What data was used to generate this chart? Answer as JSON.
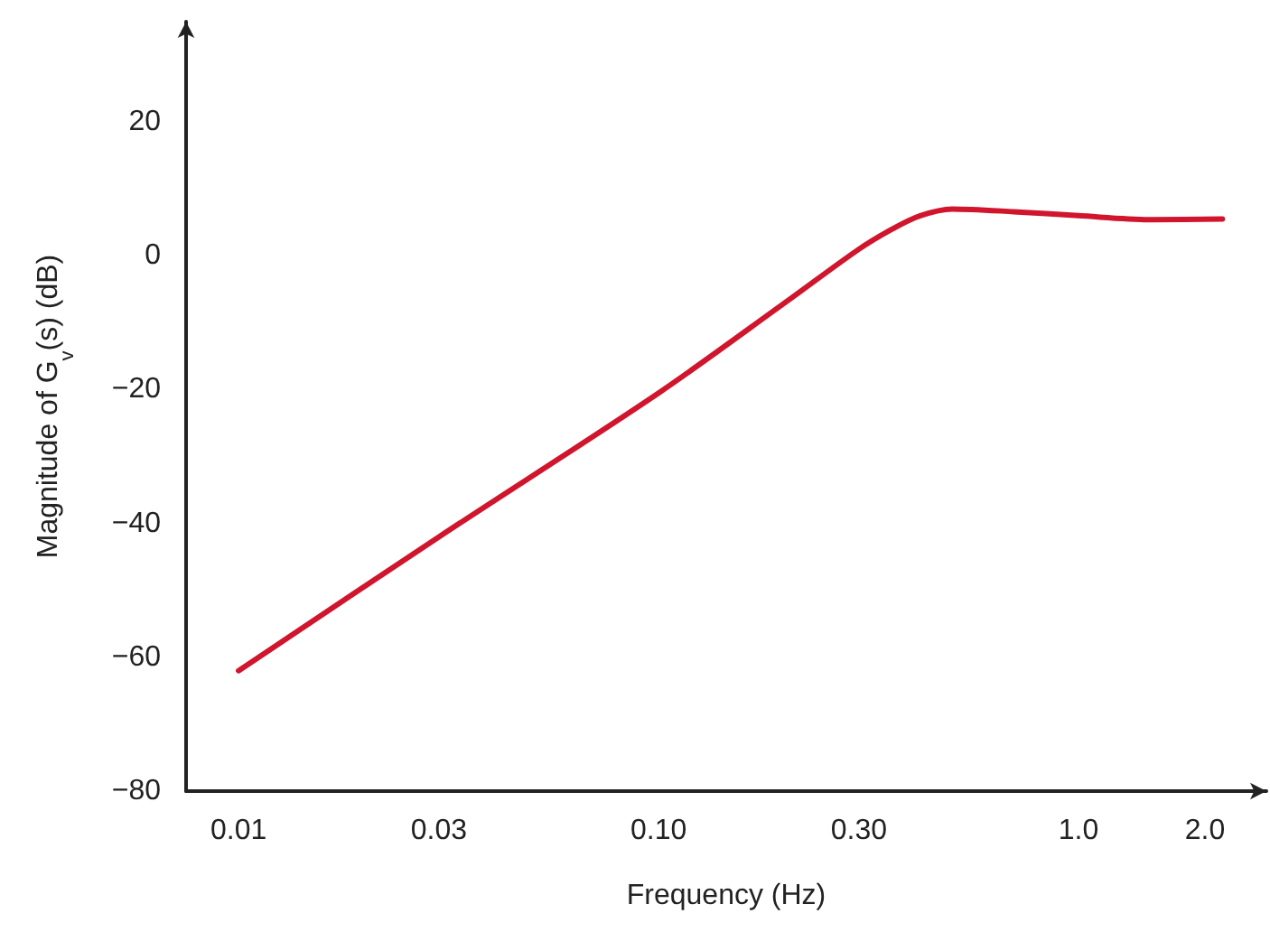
{
  "chart_data": {
    "type": "line",
    "xlabel": "Frequency (Hz)",
    "ylabel": "Magnitude of G$_{v}$(s) (dB)",
    "log": "x",
    "grid": false,
    "marker": "none",
    "line_style": "solid",
    "xlim": [
      0.0075,
      2.8
    ],
    "ylim": [
      -80,
      35
    ],
    "xticks": [
      0.01,
      0.03,
      {
        "value": 0.1,
        "label": "0.10"
      },
      {
        "value": 0.3,
        "label": "0.30"
      },
      {
        "value": 1,
        "label": "1.0"
      },
      {
        "value": 2,
        "label": "2.0"
      }
    ],
    "yticks": [
      {
        "value": -80,
        "label": "−80"
      },
      {
        "value": -60,
        "label": "−60"
      },
      {
        "value": -40,
        "label": "−40"
      },
      {
        "value": -20,
        "label": "−20"
      },
      0,
      20
    ],
    "series": [
      {
        "color": "#d0152d",
        "x": [
          0.01,
          0.03,
          0.1,
          0.2,
          0.3,
          0.36,
          0.42,
          0.5,
          0.7,
          1.0,
          1.5,
          2.2
        ],
        "values": [
          -62,
          -42,
          -20.5,
          -7,
          1,
          4,
          6,
          7,
          6.6,
          6,
          5.4,
          5.5
        ]
      }
    ]
  }
}
